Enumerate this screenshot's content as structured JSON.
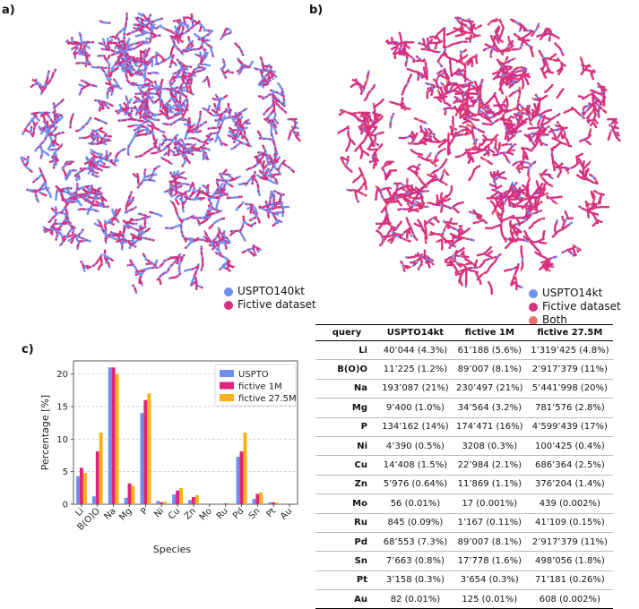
{
  "panels": {
    "a": "a)",
    "b": "b)",
    "c": "c)"
  },
  "colors": {
    "uspto": "#6f8ff2",
    "fictive": "#d6307e",
    "both": "#e8706f",
    "f1m": "#e3237a",
    "f275": "#f7b116"
  },
  "legend_a": [
    {
      "label": "USPTO140kt",
      "color": "#6f8ff2"
    },
    {
      "label": "Fictive dataset",
      "color": "#d6307e"
    }
  ],
  "legend_b": [
    {
      "label": "USPTO14kt",
      "color": "#6f8ff2"
    },
    {
      "label": "Fictive dataset",
      "color": "#d6307e"
    },
    {
      "label": "Both",
      "color": "#e8706f"
    }
  ],
  "chart_data": {
    "type": "bar",
    "title": "",
    "xlabel": "Species",
    "ylabel": "Percentage [%]",
    "ylim": [
      0,
      22
    ],
    "yticks": [
      0,
      5,
      10,
      15,
      20
    ],
    "grid": true,
    "legend_position": "top-right",
    "categories": [
      "Li",
      "B(O)O",
      "Na",
      "Mg",
      "P",
      "Ni",
      "Cu",
      "Zn",
      "Mo",
      "Ru",
      "Pd",
      "Sn",
      "Pt",
      "Au"
    ],
    "series": [
      {
        "name": "USPTO",
        "color": "#6f8ff2",
        "values": [
          4.3,
          1.2,
          21,
          1.0,
          14,
          0.5,
          1.5,
          0.64,
          0.01,
          0.09,
          7.3,
          0.8,
          0.3,
          0.01
        ]
      },
      {
        "name": "fictive 1M",
        "color": "#e3237a",
        "values": [
          5.6,
          8.1,
          21,
          3.2,
          16,
          0.3,
          2.1,
          1.1,
          0.001,
          0.11,
          8.1,
          1.6,
          0.3,
          0.01
        ]
      },
      {
        "name": "fictive 27.5M",
        "color": "#f7b116",
        "values": [
          4.8,
          11,
          20,
          2.8,
          17,
          0.4,
          2.5,
          1.4,
          0.002,
          0.15,
          11,
          1.8,
          0.26,
          0.002
        ]
      }
    ]
  },
  "table": {
    "headers": [
      "query",
      "USPTO14kt",
      "fictive 1M",
      "fictive 27.5M"
    ],
    "rows": [
      [
        "Li",
        "40’044 (4.3%)",
        "61’188 (5.6%)",
        "1’319’425 (4.8%)"
      ],
      [
        "B(O)O",
        "11’225 (1.2%)",
        "89’007 (8.1%)",
        "2’917’379 (11%)"
      ],
      [
        "Na",
        "193’087 (21%)",
        "230’497 (21%)",
        "5’441’998 (20%)"
      ],
      [
        "Mg",
        "9’400 (1.0%)",
        "34’564 (3.2%)",
        "781’576 (2.8%)"
      ],
      [
        "P",
        "134’162 (14%)",
        "174’471 (16%)",
        "4’599’439 (17%)"
      ],
      [
        "Ni",
        "4’390 (0.5%)",
        "3208 (0.3%)",
        "100’425 (0.4%)"
      ],
      [
        "Cu",
        "14’408 (1.5%)",
        "22’984 (2.1%)",
        "686’364 (2.5%)"
      ],
      [
        "Zn",
        "5’976 (0.64%)",
        "11’869 (1.1%)",
        "376’204 (1.4%)"
      ],
      [
        "Mo",
        "56 (0.01%)",
        "17 (0.001%)",
        "439 (0.002%)"
      ],
      [
        "Ru",
        "845 (0.09%)",
        "1’167 (0.11%)",
        "41’109 (0.15%)"
      ],
      [
        "Pd",
        "68’553 (7.3%)",
        "89’007 (8.1%)",
        "2’917’379 (11%)"
      ],
      [
        "Sn",
        "7’663 (0.8%)",
        "17’778 (1.6%)",
        "498’056 (1.8%)"
      ],
      [
        "Pt",
        "3’158 (0.3%)",
        "3’654 (0.3%)",
        "71’181 (0.26%)"
      ],
      [
        "Au",
        "82 (0.01%)",
        "125 (0.01%)",
        "608 (0.002%)"
      ]
    ]
  }
}
